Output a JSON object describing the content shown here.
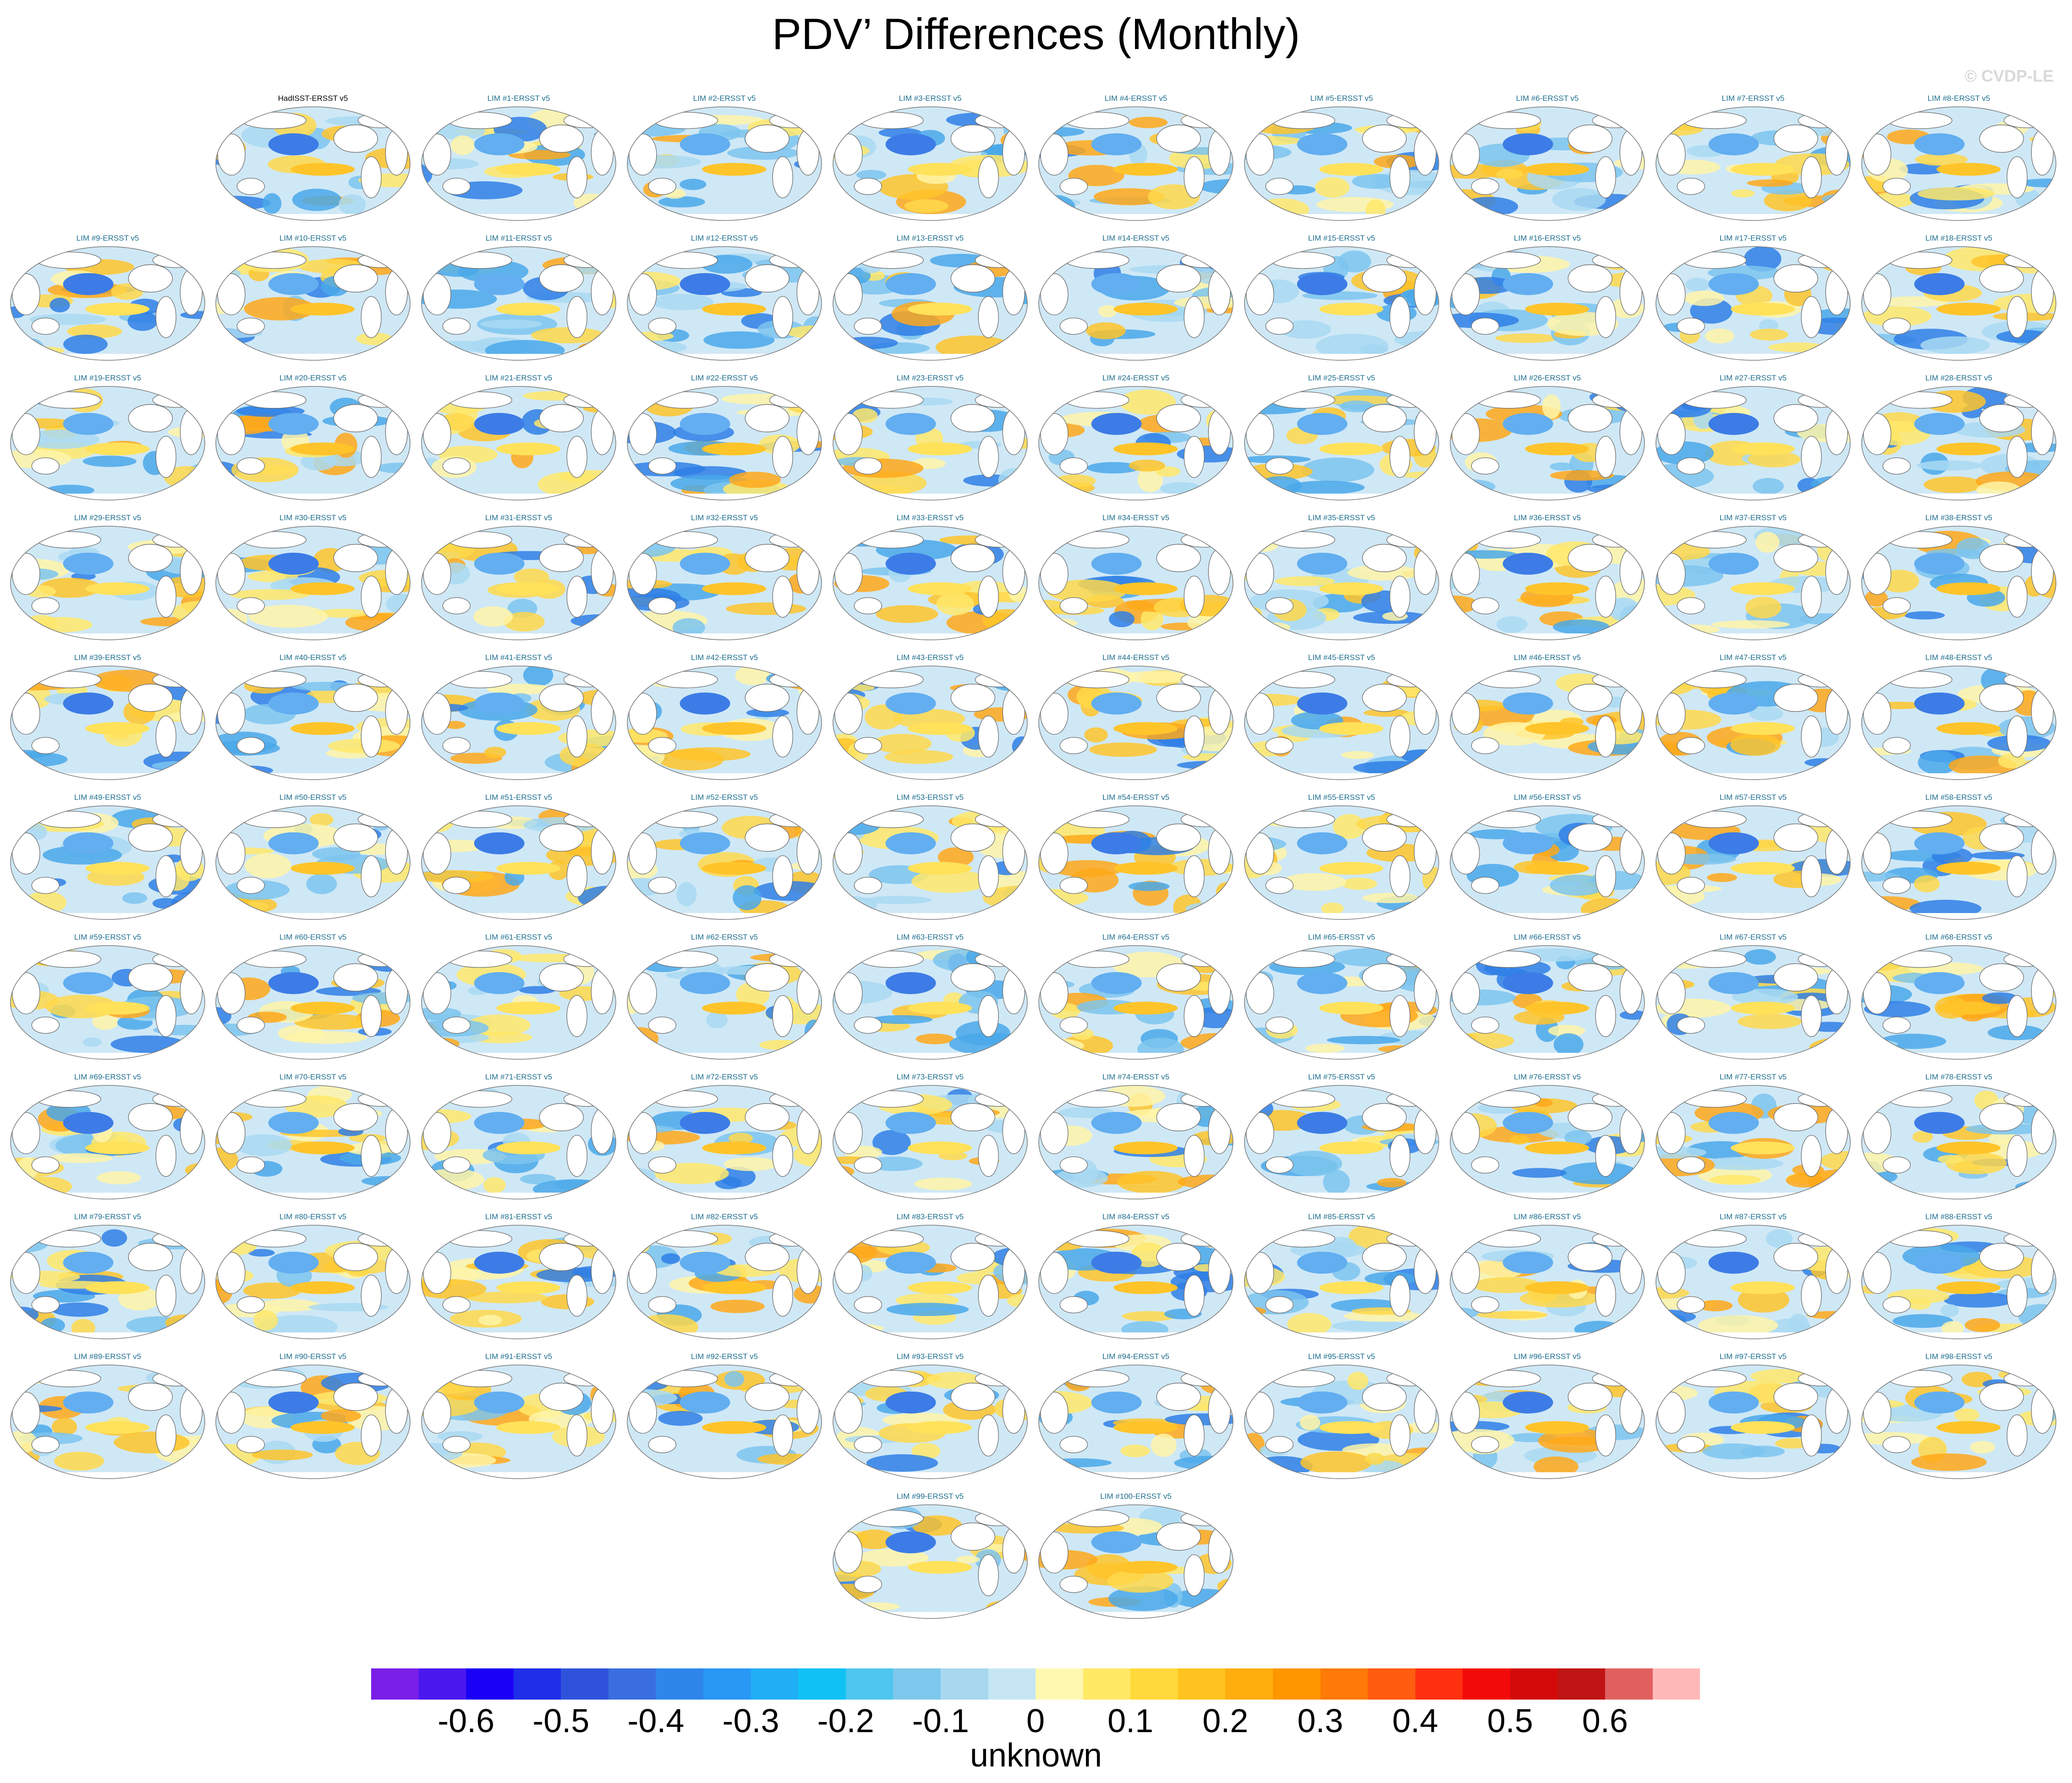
{
  "title": "PDV’ Differences (Monthly)",
  "watermark": "© CVDP-LE",
  "chart_data": {
    "type": "heatmap",
    "title": "PDV’ Differences (Monthly)",
    "panel_layout": "9 columns per row, first row offset right, last row centered",
    "panels": [
      "HadISST-ERSST v5",
      "LIM #1-ERSST v5",
      "LIM #2-ERSST v5",
      "LIM #3-ERSST v5",
      "LIM #4-ERSST v5",
      "LIM #5-ERSST v5",
      "LIM #6-ERSST v5",
      "LIM #7-ERSST v5",
      "LIM #8-ERSST v5",
      "LIM #9-ERSST v5",
      "LIM #10-ERSST v5",
      "LIM #11-ERSST v5",
      "LIM #12-ERSST v5",
      "LIM #13-ERSST v5",
      "LIM #14-ERSST v5",
      "LIM #15-ERSST v5",
      "LIM #16-ERSST v5",
      "LIM #17-ERSST v5",
      "LIM #18-ERSST v5",
      "LIM #19-ERSST v5",
      "LIM #20-ERSST v5",
      "LIM #21-ERSST v5",
      "LIM #22-ERSST v5",
      "LIM #23-ERSST v5",
      "LIM #24-ERSST v5",
      "LIM #25-ERSST v5",
      "LIM #26-ERSST v5",
      "LIM #27-ERSST v5",
      "LIM #28-ERSST v5",
      "LIM #29-ERSST v5",
      "LIM #30-ERSST v5",
      "LIM #31-ERSST v5",
      "LIM #32-ERSST v5",
      "LIM #33-ERSST v5",
      "LIM #34-ERSST v5",
      "LIM #35-ERSST v5",
      "LIM #36-ERSST v5",
      "LIM #37-ERSST v5",
      "LIM #38-ERSST v5",
      "LIM #39-ERSST v5",
      "LIM #40-ERSST v5",
      "LIM #41-ERSST v5",
      "LIM #42-ERSST v5",
      "LIM #43-ERSST v5",
      "LIM #44-ERSST v5",
      "LIM #45-ERSST v5",
      "LIM #46-ERSST v5",
      "LIM #47-ERSST v5",
      "LIM #48-ERSST v5",
      "LIM #49-ERSST v5",
      "LIM #50-ERSST v5",
      "LIM #51-ERSST v5",
      "LIM #52-ERSST v5",
      "LIM #53-ERSST v5",
      "LIM #54-ERSST v5",
      "LIM #55-ERSST v5",
      "LIM #56-ERSST v5",
      "LIM #57-ERSST v5",
      "LIM #58-ERSST v5",
      "LIM #59-ERSST v5",
      "LIM #60-ERSST v5",
      "LIM #61-ERSST v5",
      "LIM #62-ERSST v5",
      "LIM #63-ERSST v5",
      "LIM #64-ERSST v5",
      "LIM #65-ERSST v5",
      "LIM #66-ERSST v5",
      "LIM #67-ERSST v5",
      "LIM #68-ERSST v5",
      "LIM #69-ERSST v5",
      "LIM #70-ERSST v5",
      "LIM #71-ERSST v5",
      "LIM #72-ERSST v5",
      "LIM #73-ERSST v5",
      "LIM #74-ERSST v5",
      "LIM #75-ERSST v5",
      "LIM #76-ERSST v5",
      "LIM #77-ERSST v5",
      "LIM #78-ERSST v5",
      "LIM #79-ERSST v5",
      "LIM #80-ERSST v5",
      "LIM #81-ERSST v5",
      "LIM #82-ERSST v5",
      "LIM #83-ERSST v5",
      "LIM #84-ERSST v5",
      "LIM #85-ERSST v5",
      "LIM #86-ERSST v5",
      "LIM #87-ERSST v5",
      "LIM #88-ERSST v5",
      "LIM #89-ERSST v5",
      "LIM #90-ERSST v5",
      "LIM #91-ERSST v5",
      "LIM #92-ERSST v5",
      "LIM #93-ERSST v5",
      "LIM #94-ERSST v5",
      "LIM #95-ERSST v5",
      "LIM #96-ERSST v5",
      "LIM #97-ERSST v5",
      "LIM #98-ERSST v5",
      "LIM #99-ERSST v5",
      "LIM #100-ERSST v5"
    ],
    "colorbar": {
      "levels": [
        -0.65,
        -0.6,
        -0.55,
        -0.5,
        -0.45,
        -0.4,
        -0.35,
        -0.3,
        -0.25,
        -0.2,
        -0.15,
        -0.1,
        -0.05,
        0,
        0.05,
        0.1,
        0.15,
        0.2,
        0.25,
        0.3,
        0.35,
        0.4,
        0.45,
        0.5,
        0.55,
        0.6,
        0.65
      ],
      "colors": [
        "#7a1fe8",
        "#4a18ef",
        "#1a00f5",
        "#1f2ee8",
        "#2f52dc",
        "#3a6ee0",
        "#2f86ea",
        "#2898f4",
        "#20aef5",
        "#10c2f4",
        "#4ec6f0",
        "#7cc8ec",
        "#a8d8ef",
        "#c6e6f4",
        "#fff8b0",
        "#ffe965",
        "#ffd93a",
        "#ffc21e",
        "#ffae0e",
        "#ff9600",
        "#ff7a06",
        "#ff5c10",
        "#ff3010",
        "#f20a0a",
        "#d40a0a",
        "#c01414",
        "#e06060",
        "#ffb8b8"
      ],
      "tick_labels": [
        "-0.6",
        "-0.5",
        "-0.4",
        "-0.3",
        "-0.2",
        "-0.1",
        "0",
        "0.1",
        "0.2",
        "0.3",
        "0.4",
        "0.5",
        "0.6"
      ],
      "tick_values": [
        -0.6,
        -0.5,
        -0.4,
        -0.3,
        -0.2,
        -0.1,
        0,
        0.1,
        0.2,
        0.3,
        0.4,
        0.5,
        0.6
      ],
      "units_label": "unknown"
    }
  }
}
